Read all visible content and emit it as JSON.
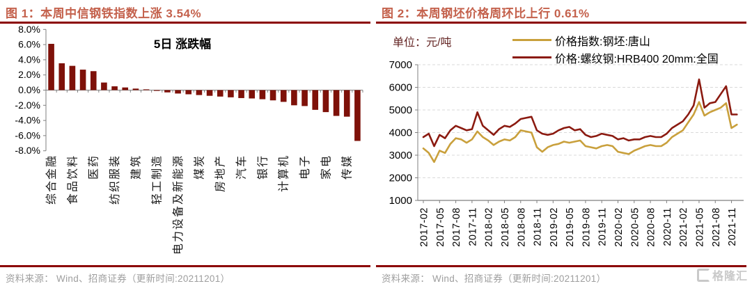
{
  "header": {
    "fig1_title": "图 1：本周中信钢铁指数上涨 3.54%",
    "fig2_title": "图 2：本周钢坯价格周环比上行 0.61%"
  },
  "colors": {
    "title": "#C4614C",
    "rule": "#8B0000",
    "bar": "#7E1109",
    "billet_line": "#C9A03C",
    "rebar_line": "#8B1A10",
    "grid": "#D9D9D9",
    "axis": "#7F7F7F",
    "unit_label": "#632423",
    "footer_text": "#9E9E9E",
    "logo": "#C9C9C9"
  },
  "fig2": {
    "unit_label": "单位：元/吨",
    "legend": [
      {
        "label": "价格指数:钢坯:唐山",
        "color": "#C9A03C"
      },
      {
        "label": "价格:螺纹钢:HRB400 20mm:全国",
        "color": "#8B1A10"
      }
    ]
  },
  "footer": {
    "source_text": "资料来源： Wind、招商证券（更新时间:20211201）",
    "logo_text": "格隆汇"
  },
  "chart_data": [
    {
      "type": "bar",
      "title": "5日 涨跌幅",
      "xlabel": "",
      "ylabel": "",
      "ylim": [
        -8,
        8
      ],
      "ytick_step": 2,
      "ytick_format": "0.0%",
      "grid": false,
      "bar_color": "#7E1109",
      "categories": [
        "综合金融",
        "",
        "食品饮料",
        "",
        "医药",
        "",
        "纺织服装",
        "",
        "建筑",
        "",
        "轻工制造",
        "",
        "电力设备及新能源",
        "",
        "煤炭",
        "",
        "房地产",
        "",
        "汽车",
        "",
        "银行",
        "",
        "计算机",
        "",
        "电子",
        "",
        "家电",
        "",
        "传媒",
        ""
      ],
      "values": [
        6.1,
        3.54,
        3.2,
        2.7,
        2.5,
        1.0,
        0.5,
        0.35,
        0.2,
        0.1,
        -0.1,
        -0.3,
        -0.45,
        -0.55,
        -0.65,
        -0.75,
        -0.85,
        -0.95,
        -1.05,
        -1.1,
        -1.2,
        -1.35,
        -1.55,
        -2.0,
        -2.1,
        -2.6,
        -2.9,
        -3.4,
        -3.5,
        -6.7
      ]
    },
    {
      "type": "line",
      "title": "",
      "unit": "元/吨",
      "ylim": [
        1000,
        7000
      ],
      "ytick_step": 1000,
      "grid": "horizontal-dashed",
      "legend_position": "top",
      "x_start": "2017-02",
      "x_interval": "monthly",
      "months_per_tick": 3,
      "x_tick_labels": [
        "2017-02",
        "2017-05",
        "2017-08",
        "2017-11",
        "2018-02",
        "2018-05",
        "2018-08",
        "2018-11",
        "2019-02",
        "2019-05",
        "2019-08",
        "2019-11",
        "2020-02",
        "2020-05",
        "2020-08",
        "2020-11",
        "2021-02",
        "2021-05",
        "2021-08",
        "2021-11"
      ],
      "series": [
        {
          "name": "价格指数:钢坯:唐山",
          "color": "#C9A03C",
          "values": [
            3300,
            3100,
            2700,
            3200,
            3100,
            3500,
            3750,
            3700,
            3550,
            3700,
            4050,
            3800,
            3650,
            3450,
            3600,
            3700,
            3650,
            3800,
            4100,
            4050,
            4000,
            3350,
            3150,
            3350,
            3450,
            3500,
            3600,
            3550,
            3600,
            3650,
            3400,
            3350,
            3300,
            3400,
            3450,
            3400,
            3150,
            3100,
            3050,
            3200,
            3300,
            3400,
            3450,
            3400,
            3400,
            3550,
            3800,
            3950,
            4100,
            4450,
            4800,
            5350,
            4750,
            4900,
            5000,
            5100,
            5300,
            4200,
            4350
          ]
        },
        {
          "name": "价格:螺纹钢:HRB400 20mm:全国",
          "color": "#8B1A10",
          "values": [
            3800,
            3950,
            3400,
            3900,
            3750,
            4100,
            4300,
            4200,
            4100,
            4150,
            4900,
            4300,
            4100,
            3900,
            4150,
            4300,
            4250,
            4400,
            4600,
            4650,
            4700,
            4100,
            3950,
            3900,
            3950,
            4100,
            4200,
            4250,
            4100,
            4150,
            3900,
            3800,
            3850,
            3950,
            3900,
            3850,
            3700,
            3750,
            3650,
            3700,
            3700,
            3800,
            3850,
            3800,
            3800,
            3950,
            4200,
            4350,
            4500,
            4800,
            5200,
            6350,
            5100,
            5300,
            5350,
            5700,
            6050,
            4800,
            4800
          ]
        }
      ]
    }
  ]
}
